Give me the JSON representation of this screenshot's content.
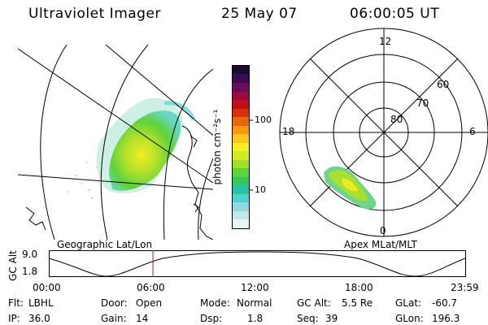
{
  "header": {
    "title": "Ultraviolet Imager",
    "date": "25 May 07",
    "time": "06:00:05 UT"
  },
  "geo_panel": {
    "label": "Geographic Lat/Lon"
  },
  "mag_panel": {
    "label": "Apex MLat/MLT",
    "mlt_labels": [
      "12",
      "18",
      "6",
      "0"
    ],
    "lat_labels": [
      "60",
      "70",
      "80"
    ]
  },
  "colorbar": {
    "unit": "photon cm⁻²s⁻¹",
    "ticks": [
      "100",
      "10"
    ],
    "colors": [
      "#e8f4f4",
      "#bfe6e8",
      "#8fd8dc",
      "#4fcfd2",
      "#26c4a2",
      "#36c85a",
      "#5ed23a",
      "#9ee02a",
      "#d0ec24",
      "#f6f020",
      "#f8c81a",
      "#f59a12",
      "#e8660c",
      "#d8300c",
      "#c0101c",
      "#9a0a3a",
      "#6a0c5a",
      "#3a0c56",
      "#180a30"
    ]
  },
  "altitude_plot": {
    "ylabel": "GC Alt",
    "yticks": [
      "9.0",
      "1.8"
    ],
    "xticks": [
      "00:00",
      "06:00",
      "12:00",
      "18:00",
      "23:59"
    ],
    "current_time_marker": "06:00"
  },
  "status": {
    "row1": [
      {
        "key": "Flt:",
        "value": "LBHL"
      },
      {
        "key": "Door:",
        "value": "Open"
      },
      {
        "key": "Mode:",
        "value": "Normal"
      },
      {
        "key": "GC Alt:",
        "value": "5.5 Re"
      },
      {
        "key": "GLat:",
        "value": "-60.7"
      }
    ],
    "row2": [
      {
        "key": "IP:",
        "value": "36.0"
      },
      {
        "key": "Gain:",
        "value": "14"
      },
      {
        "key": "Dsp:",
        "value": "1.8"
      },
      {
        "key": "Seq:",
        "value": "39"
      },
      {
        "key": "GLon:",
        "value": "196.3"
      }
    ]
  }
}
